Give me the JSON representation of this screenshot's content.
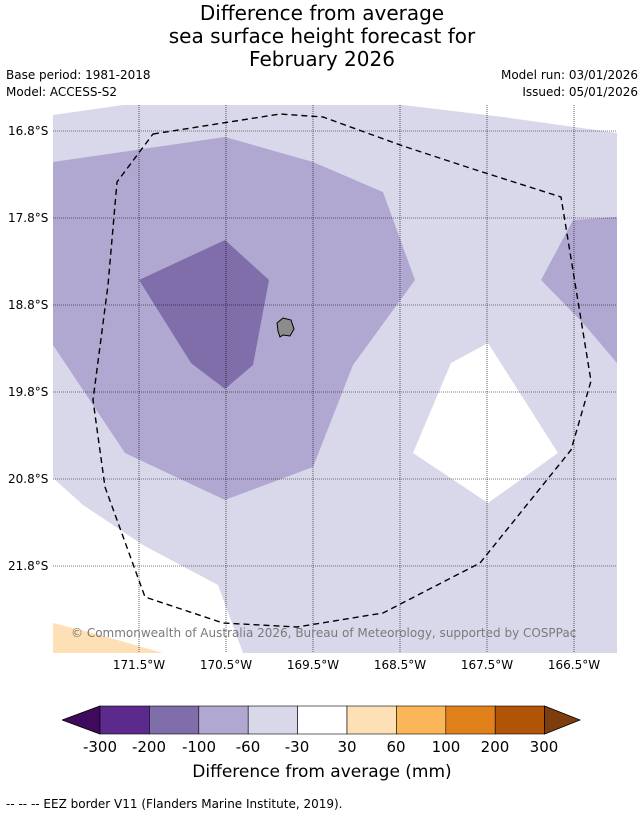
{
  "title": {
    "line1": "Difference from average",
    "line2": "sea surface height forecast for",
    "line3": "February 2026"
  },
  "info": {
    "base_period": "Base period: 1981-2018",
    "model": "Model: ACCESS-S2",
    "model_run": "Model run: 03/01/2026",
    "issued": "Issued: 05/01/2026"
  },
  "map": {
    "lat_labels": [
      "16.8°S",
      "17.8°S",
      "18.8°S",
      "19.8°S",
      "20.8°S",
      "21.8°S"
    ],
    "lon_labels": [
      "171.5°W",
      "170.5°W",
      "169.5°W",
      "168.5°W",
      "167.5°W",
      "166.5°W"
    ],
    "copyright": "© Commonwealth of Australia 2026, Bureau of Meteorology, supported by COSPPac",
    "colors": {
      "neg_100_200": "#7f6eaa",
      "neg_60_100": "#b0a8d0",
      "neg_30_60": "#d8d8ea",
      "neutral": "#ffffff",
      "pos_30_60": "#fde0b5",
      "island": "#8c8c8c",
      "grid": "#000000"
    }
  },
  "colorbar": {
    "ticks": [
      "-300",
      "-200",
      "-100",
      "-60",
      "-30",
      "30",
      "60",
      "100",
      "200",
      "300"
    ],
    "colors": [
      "#3f0a5c",
      "#5b2a8c",
      "#7f6eaa",
      "#b0a8d0",
      "#d8d8ea",
      "#ffffff",
      "#fde0b5",
      "#fcb65a",
      "#e0801a",
      "#b05408",
      "#7f3c0c"
    ],
    "label": "Difference from average (mm)"
  },
  "footer": "-- -- -- EEZ border V11 (Flanders Marine Institute, 2019)."
}
